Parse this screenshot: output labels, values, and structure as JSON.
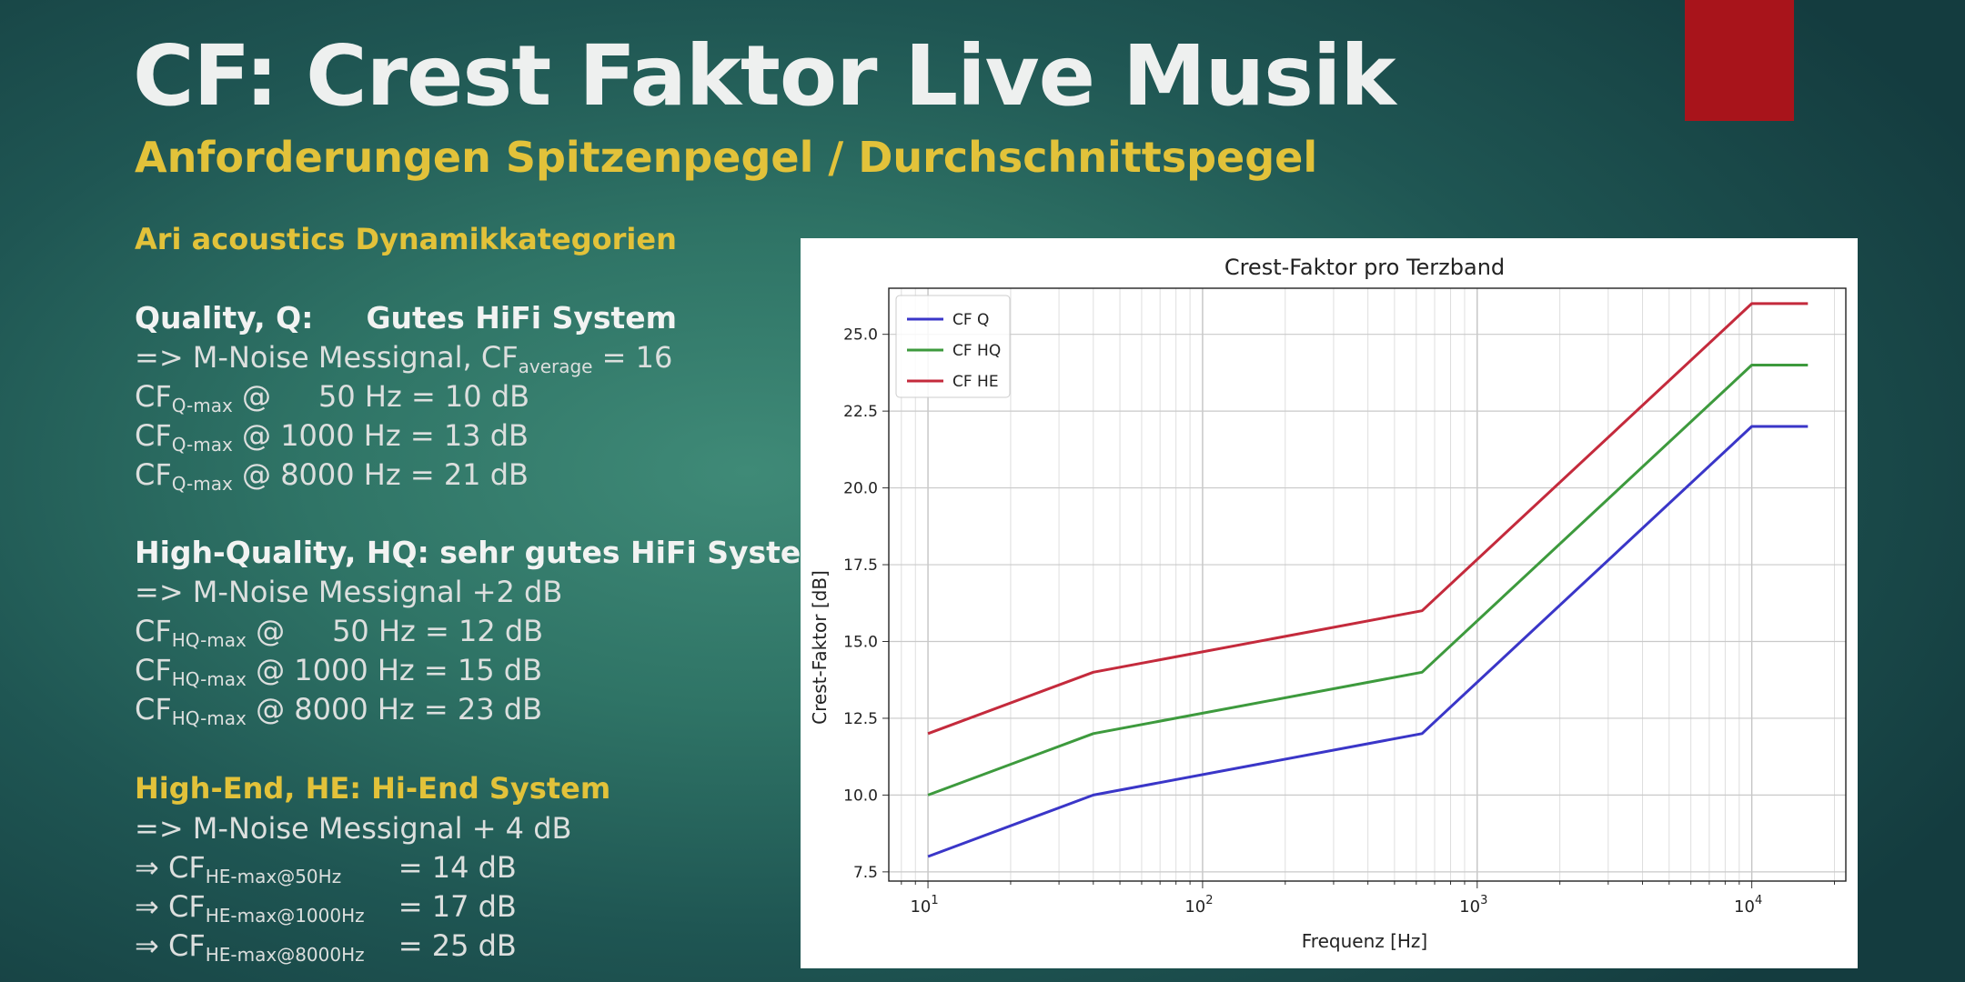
{
  "slide": {
    "title": "CF: Crest Faktor Live Musik",
    "subtitle": "Anforderungen Spitzenpegel / Durchschnittspegel",
    "section": "Ari acoustics Dynamikkategorien",
    "accent_color": "#a8141b"
  },
  "quality": {
    "heading_a": "Quality, Q:",
    "heading_b": "Gutes HiFi System",
    "line1_pre": "=> M-Noise Messignal, CF",
    "line1_sub": "average",
    "line1_post": " = 16",
    "rows": [
      {
        "cf": "CF",
        "sub": "Q-max",
        "at": " @",
        "freq": "50 Hz = 10 dB"
      },
      {
        "cf": "CF",
        "sub": "Q-max",
        "at": " @",
        "freq": "1000 Hz = 13 dB"
      },
      {
        "cf": "CF",
        "sub": "Q-max",
        "at": " @",
        "freq": "8000 Hz = 21 dB"
      }
    ]
  },
  "high_quality": {
    "heading": "High-Quality, HQ: sehr gutes HiFi System",
    "line1": "=> M-Noise Messignal +2 dB",
    "rows": [
      {
        "cf": "CF",
        "sub": "HQ-max",
        "at": " @",
        "freq": "50 Hz = 12 dB"
      },
      {
        "cf": "CF",
        "sub": "HQ-max",
        "at": " @",
        "freq": "1000 Hz = 15 dB"
      },
      {
        "cf": "CF",
        "sub": "HQ-max",
        "at": " @",
        "freq": "8000 Hz = 23 dB"
      }
    ]
  },
  "high_end": {
    "heading": "High-End, HE: Hi-End System",
    "line1": "=> M-Noise Messignal + 4 dB",
    "rows": [
      {
        "arrow": "⇒",
        "cf": "CF",
        "sub": "HE-max@50Hz",
        "val": "= 14 dB"
      },
      {
        "arrow": "⇒",
        "cf": "CF",
        "sub": "HE-max@1000Hz",
        "val": "= 17 dB"
      },
      {
        "arrow": "⇒",
        "cf": "CF",
        "sub": "HE-max@8000Hz",
        "val": "= 25 dB"
      }
    ]
  },
  "chart_data": {
    "type": "line",
    "title": "Crest-Faktor pro Terzband",
    "xlabel": "Frequenz [Hz]",
    "ylabel": "Crest-Faktor [dB]",
    "xscale": "log",
    "xlim": [
      7.2,
      22000
    ],
    "ylim": [
      7.2,
      26.5
    ],
    "xticks": [
      10,
      100,
      1000,
      10000
    ],
    "xtick_labels": [
      {
        "base": "10",
        "exp": "1"
      },
      {
        "base": "10",
        "exp": "2"
      },
      {
        "base": "10",
        "exp": "3"
      },
      {
        "base": "10",
        "exp": "4"
      }
    ],
    "yticks": [
      7.5,
      10.0,
      12.5,
      15.0,
      17.5,
      20.0,
      22.5,
      25.0
    ],
    "ytick_labels": [
      "7.5",
      "10.0",
      "12.5",
      "15.0",
      "17.5",
      "20.0",
      "22.5",
      "25.0"
    ],
    "grid": true,
    "legend_position": "top-left",
    "x": [
      10,
      40,
      630,
      10000,
      16000
    ],
    "series": [
      {
        "name": "CF Q",
        "color": "#3a36c8",
        "values": [
          8,
          10,
          12,
          22,
          22
        ]
      },
      {
        "name": "CF HQ",
        "color": "#3d9a3d",
        "values": [
          10,
          12,
          14,
          24,
          24
        ]
      },
      {
        "name": "CF HE",
        "color": "#c42a3c",
        "values": [
          12,
          14,
          16,
          26,
          26
        ]
      }
    ]
  }
}
